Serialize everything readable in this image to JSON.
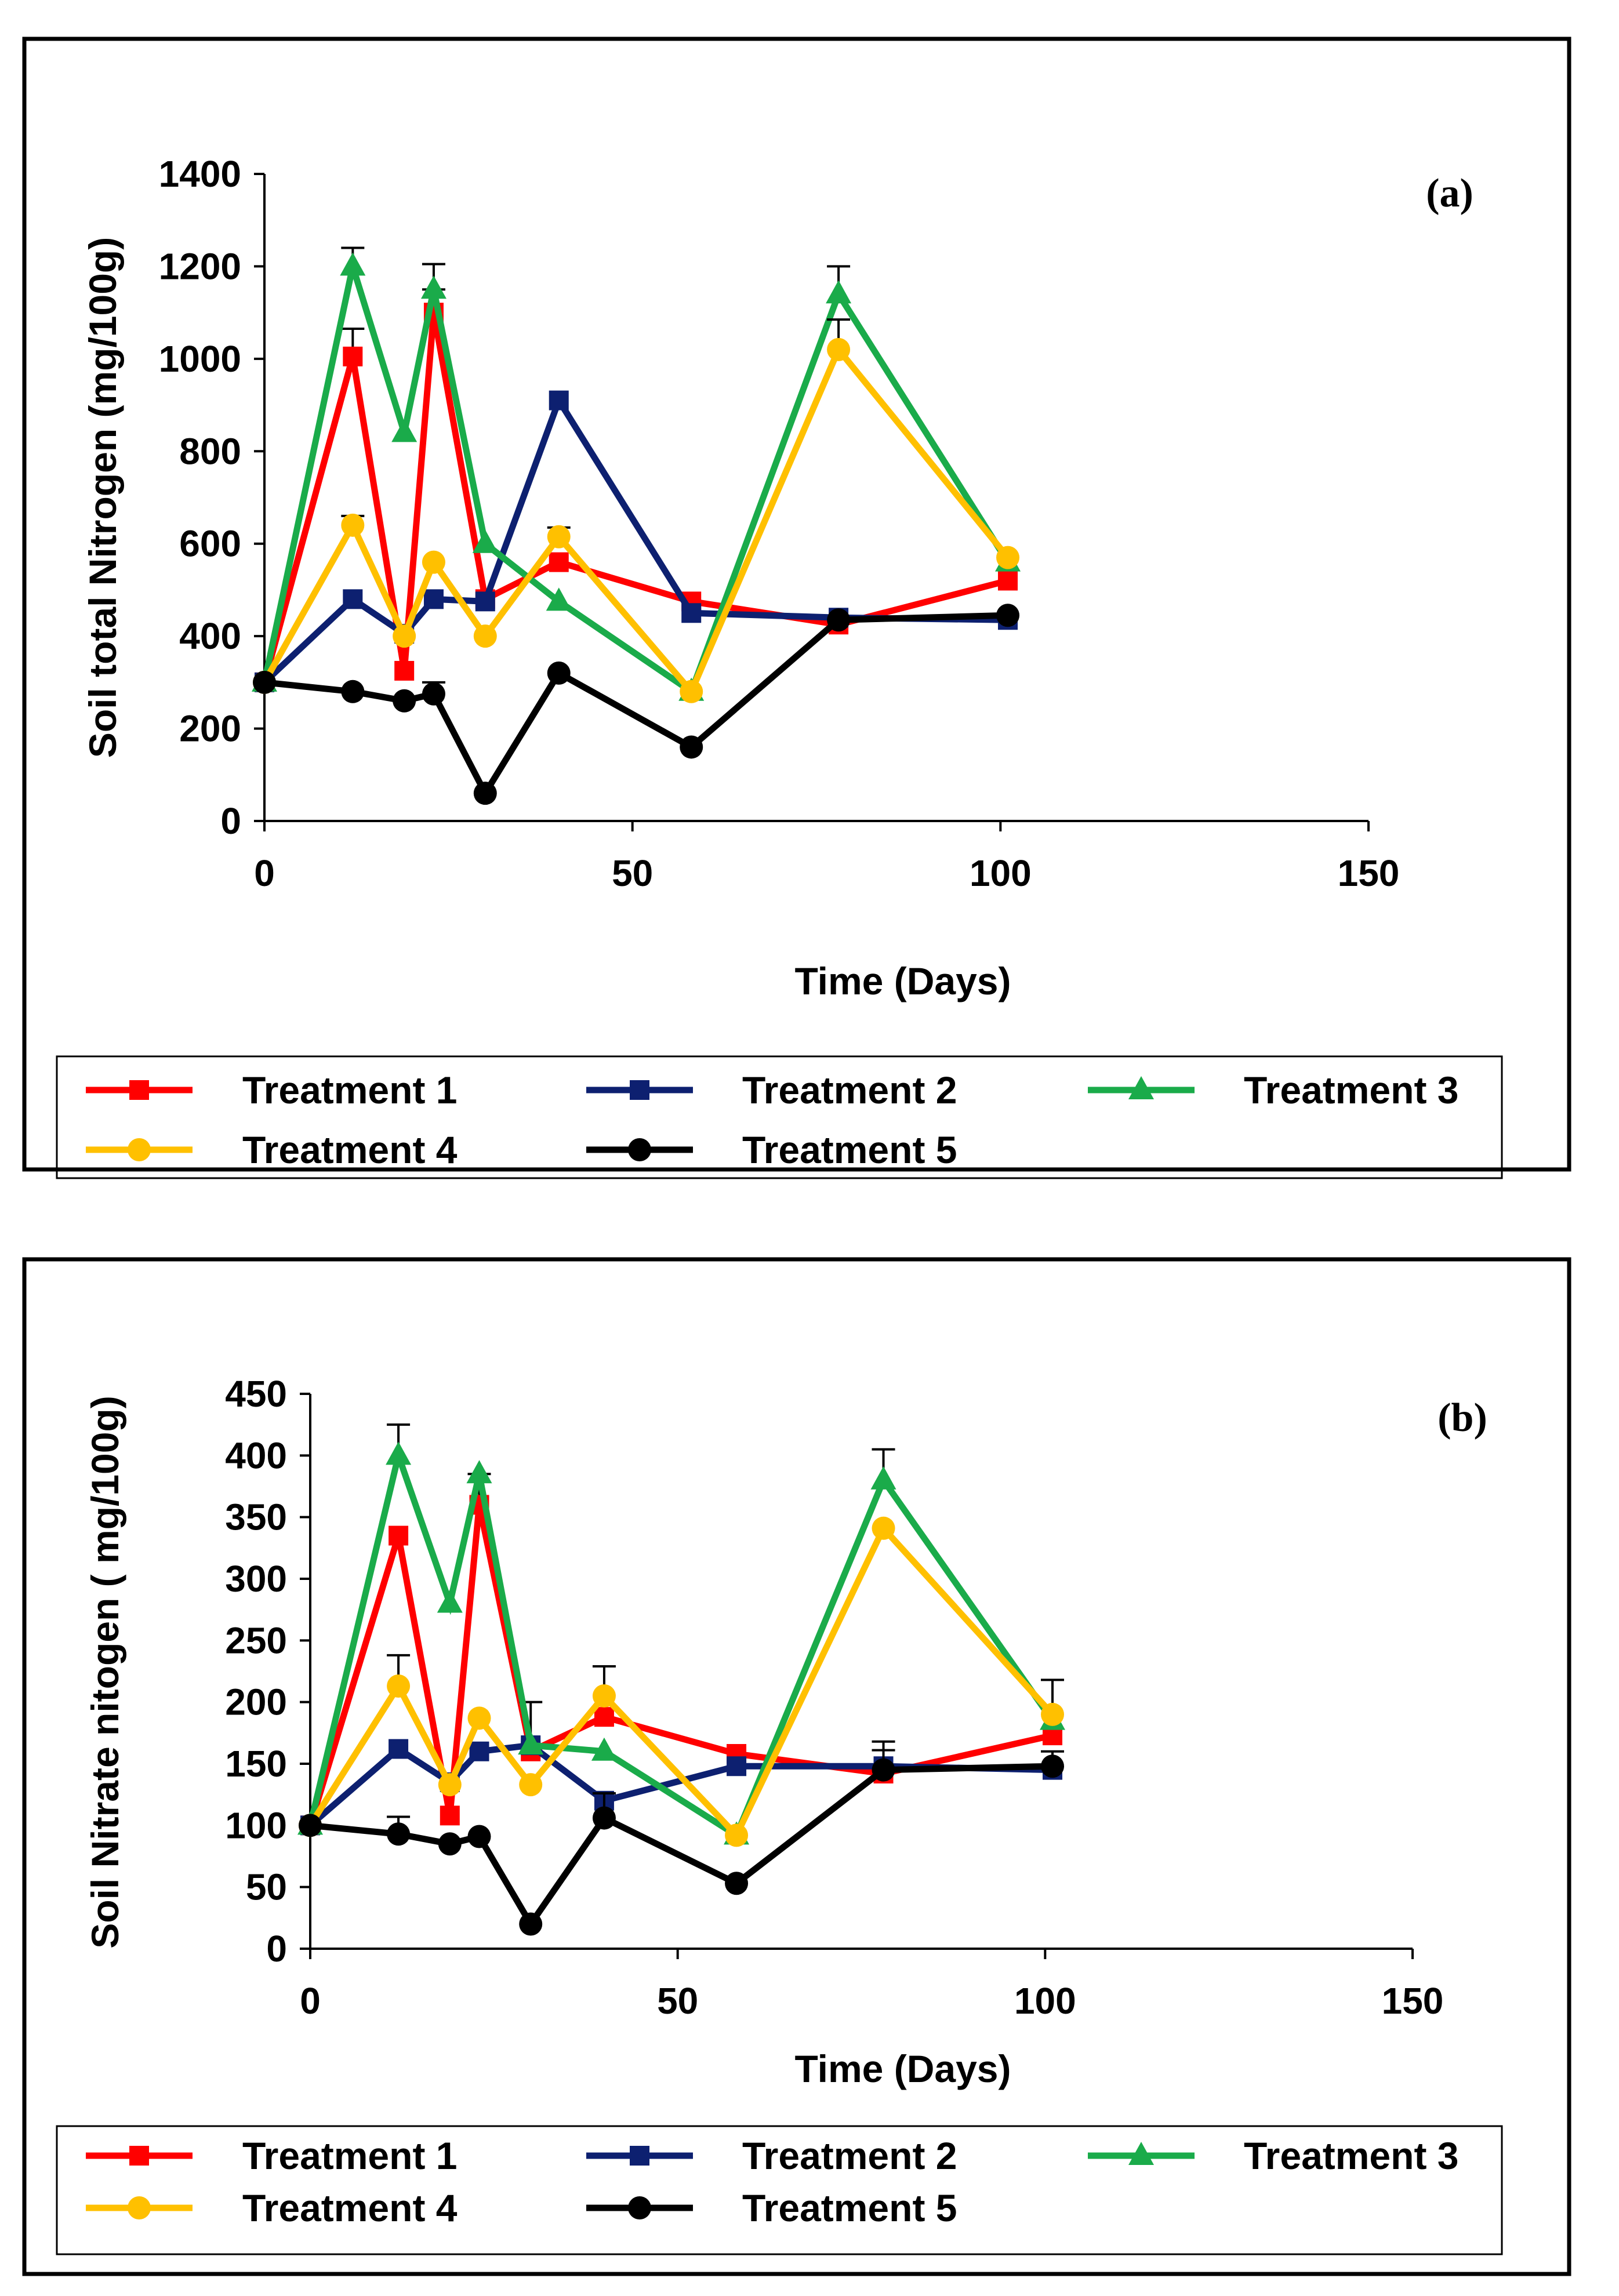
{
  "chart_data": [
    {
      "type": "line",
      "panel_label": "(a)",
      "xlabel": "Time (Days)",
      "ylabel": "Soil total Nitrogen (mg/100g)",
      "xlim": [
        0,
        150
      ],
      "ylim": [
        0,
        1400
      ],
      "xticks": [
        0,
        50,
        100,
        150
      ],
      "yticks": [
        0,
        200,
        400,
        600,
        800,
        1000,
        1200,
        1400
      ],
      "legend_position": "bottom",
      "series": [
        {
          "name": "Treatment 1",
          "color": "#ff0000",
          "marker": "square",
          "x": [
            0,
            12,
            19,
            23,
            30,
            40,
            58,
            78,
            101
          ],
          "y": [
            300,
            1005,
            325,
            1100,
            480,
            560,
            475,
            425,
            520
          ],
          "err": [
            0,
            60,
            0,
            50,
            0,
            0,
            0,
            0,
            0
          ]
        },
        {
          "name": "Treatment 2",
          "color": "#0d2070",
          "marker": "square",
          "x": [
            0,
            12,
            19,
            23,
            30,
            40,
            58,
            78,
            101
          ],
          "y": [
            300,
            480,
            405,
            480,
            475,
            910,
            450,
            440,
            435
          ],
          "err": [
            0,
            0,
            0,
            0,
            0,
            0,
            0,
            0,
            0
          ]
        },
        {
          "name": "Treatment 3",
          "color": "#1aab4a",
          "marker": "triangle",
          "x": [
            0,
            12,
            19,
            23,
            30,
            40,
            58,
            78,
            101
          ],
          "y": [
            300,
            1200,
            840,
            1150,
            600,
            475,
            280,
            1140,
            560
          ],
          "err": [
            0,
            40,
            0,
            55,
            0,
            0,
            0,
            60,
            0
          ]
        },
        {
          "name": "Treatment 4",
          "color": "#ffc000",
          "marker": "circle",
          "x": [
            0,
            12,
            19,
            23,
            30,
            40,
            58,
            78,
            101
          ],
          "y": [
            300,
            640,
            400,
            560,
            400,
            615,
            280,
            1020,
            570
          ],
          "err": [
            0,
            20,
            0,
            0,
            0,
            20,
            0,
            65,
            0
          ]
        },
        {
          "name": "Treatment 5",
          "color": "#000000",
          "marker": "circle",
          "x": [
            0,
            12,
            19,
            23,
            30,
            40,
            58,
            78,
            101
          ],
          "y": [
            300,
            280,
            260,
            275,
            60,
            320,
            160,
            435,
            445
          ],
          "err": [
            0,
            0,
            0,
            25,
            0,
            0,
            0,
            0,
            0
          ]
        }
      ]
    },
    {
      "type": "line",
      "panel_label": "(b)",
      "xlabel": "Time (Days)",
      "ylabel": "Soil Nitrate nitogen ( mg/100g)",
      "xlim": [
        0,
        150
      ],
      "ylim": [
        0,
        450
      ],
      "xticks": [
        0,
        50,
        100,
        150
      ],
      "yticks": [
        0,
        50,
        100,
        150,
        200,
        250,
        300,
        350,
        400,
        450
      ],
      "legend_position": "bottom",
      "series": [
        {
          "name": "Treatment 1",
          "color": "#ff0000",
          "marker": "square",
          "x": [
            0,
            12,
            19,
            23,
            30,
            40,
            58,
            78,
            101
          ],
          "y": [
            100,
            335,
            108,
            360,
            160,
            188,
            158,
            142,
            173
          ],
          "err": [
            0,
            0,
            0,
            25,
            0,
            0,
            0,
            0,
            0
          ]
        },
        {
          "name": "Treatment 2",
          "color": "#0d2070",
          "marker": "square",
          "x": [
            0,
            12,
            19,
            23,
            30,
            40,
            58,
            78,
            101
          ],
          "y": [
            100,
            162,
            135,
            160,
            165,
            120,
            148,
            148,
            145
          ],
          "err": [
            0,
            0,
            0,
            0,
            0,
            0,
            0,
            20,
            15
          ]
        },
        {
          "name": "Treatment 3",
          "color": "#1aab4a",
          "marker": "triangle",
          "x": [
            0,
            12,
            19,
            23,
            30,
            40,
            58,
            78,
            101
          ],
          "y": [
            100,
            400,
            280,
            385,
            165,
            160,
            92,
            380,
            185
          ],
          "err": [
            0,
            25,
            0,
            0,
            35,
            0,
            0,
            25,
            0
          ]
        },
        {
          "name": "Treatment 4",
          "color": "#ffc000",
          "marker": "circle",
          "x": [
            0,
            12,
            19,
            23,
            30,
            40,
            58,
            78,
            101
          ],
          "y": [
            100,
            213,
            133,
            187,
            133,
            205,
            92,
            341,
            190
          ],
          "err": [
            0,
            25,
            0,
            0,
            0,
            24,
            0,
            0,
            28
          ]
        },
        {
          "name": "Treatment 5",
          "color": "#000000",
          "marker": "circle",
          "x": [
            0,
            12,
            19,
            23,
            30,
            40,
            58,
            78,
            101
          ],
          "y": [
            100,
            93,
            85,
            91,
            20,
            106,
            53,
            145,
            148
          ],
          "err": [
            0,
            14,
            0,
            0,
            0,
            20,
            0,
            16,
            0
          ]
        }
      ]
    }
  ]
}
